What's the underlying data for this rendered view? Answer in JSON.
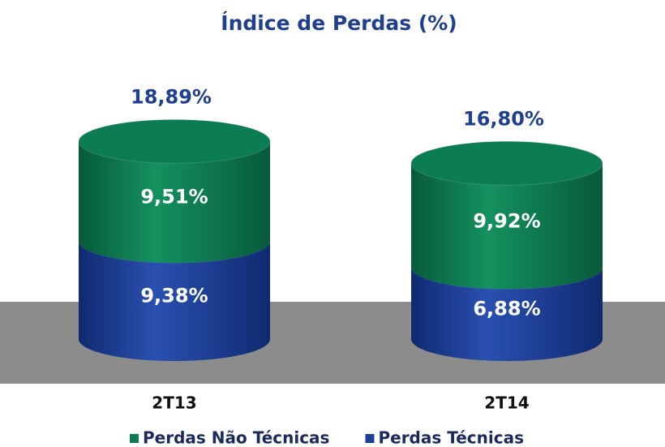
{
  "chart_data": {
    "type": "stacked-cylinder",
    "title": "Índice de Perdas (%)",
    "categories": [
      "2T13",
      "2T14"
    ],
    "series": [
      {
        "name": "Perdas Técnicas",
        "color": "#1d3f98",
        "values": [
          9.38,
          6.88
        ],
        "value_labels": [
          "9,38%",
          "6,88%"
        ]
      },
      {
        "name": "Perdas Não Técnicas",
        "color": "#0c7c52",
        "values": [
          9.51,
          9.92
        ],
        "value_labels": [
          "9,51%",
          "9,92%"
        ]
      }
    ],
    "totals": [
      18.89,
      16.8
    ],
    "total_labels": [
      "18,89%",
      "16,80%"
    ],
    "legend_order": [
      1,
      0
    ]
  }
}
